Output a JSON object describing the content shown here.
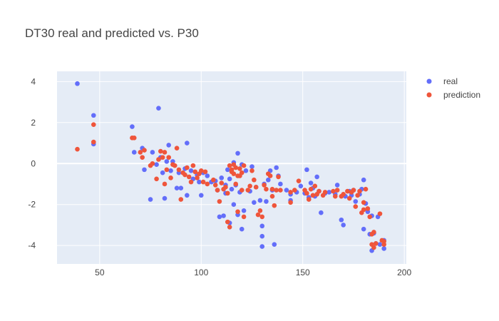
{
  "chart_data": {
    "type": "scatter",
    "title": "DT30 real and predicted vs. P30",
    "xlabel": "",
    "ylabel": "",
    "xlim": [
      29,
      201
    ],
    "ylim": [
      -4.9,
      4.5
    ],
    "xticks": [
      50,
      100,
      150,
      200
    ],
    "yticks": [
      4,
      2,
      0,
      -2,
      -4
    ],
    "grid": true,
    "legend_position": "top-right",
    "series": [
      {
        "name": "real",
        "color": "#636efa",
        "points": [
          [
            39,
            3.9
          ],
          [
            47,
            2.35
          ],
          [
            47,
            0.95
          ],
          [
            66,
            1.8
          ],
          [
            67,
            0.55
          ],
          [
            71,
            0.75
          ],
          [
            72,
            -0.3
          ],
          [
            75,
            -1.75
          ],
          [
            76,
            0.55
          ],
          [
            78,
            -0.05
          ],
          [
            79,
            2.7
          ],
          [
            80,
            0.3
          ],
          [
            81,
            -0.45
          ],
          [
            82,
            -1.7
          ],
          [
            83,
            0.1
          ],
          [
            84,
            0.9
          ],
          [
            85,
            -0.35
          ],
          [
            86,
            0.1
          ],
          [
            88,
            -1.2
          ],
          [
            89,
            -0.45
          ],
          [
            90,
            -1.2
          ],
          [
            92,
            -0.25
          ],
          [
            93,
            1.0
          ],
          [
            93,
            -1.55
          ],
          [
            95,
            -0.35
          ],
          [
            96,
            -0.75
          ],
          [
            98,
            -0.55
          ],
          [
            99,
            -0.9
          ],
          [
            100,
            -1.55
          ],
          [
            101,
            -0.45
          ],
          [
            103,
            -0.6
          ],
          [
            105,
            -0.9
          ],
          [
            107,
            -0.85
          ],
          [
            108,
            -1.3
          ],
          [
            109,
            -2.6
          ],
          [
            110,
            -0.7
          ],
          [
            111,
            -2.55
          ],
          [
            112,
            -1.05
          ],
          [
            112,
            -1.45
          ],
          [
            113,
            -0.3
          ],
          [
            114,
            -2.9
          ],
          [
            114,
            -0.75
          ],
          [
            115,
            -1.25
          ],
          [
            116,
            -2.0
          ],
          [
            116,
            0.05
          ],
          [
            117,
            -1.05
          ],
          [
            118,
            -2.5
          ],
          [
            118,
            0.5
          ],
          [
            119,
            -1.4
          ],
          [
            120,
            -3.2
          ],
          [
            120,
            -0.05
          ],
          [
            121,
            -2.3
          ],
          [
            122,
            -0.35
          ],
          [
            124,
            -1.35
          ],
          [
            125,
            -0.15
          ],
          [
            126,
            -1.9
          ],
          [
            127,
            -1.15
          ],
          [
            129,
            -1.8
          ],
          [
            130,
            -3.05
          ],
          [
            130,
            -3.55
          ],
          [
            130,
            -4.05
          ],
          [
            131,
            -1.0
          ],
          [
            132,
            -1.85
          ],
          [
            133,
            -0.8
          ],
          [
            134,
            -0.35
          ],
          [
            135,
            -1.3
          ],
          [
            136,
            -3.95
          ],
          [
            137,
            -0.2
          ],
          [
            138,
            -0.6
          ],
          [
            139,
            -1.0
          ],
          [
            142,
            -1.3
          ],
          [
            144,
            -1.5
          ],
          [
            144,
            -1.8
          ],
          [
            147,
            -1.4
          ],
          [
            149,
            -1.1
          ],
          [
            151,
            -1.45
          ],
          [
            152,
            -0.3
          ],
          [
            153,
            -1.65
          ],
          [
            154,
            -0.95
          ],
          [
            155,
            -1.2
          ],
          [
            156,
            -1.6
          ],
          [
            157,
            -0.65
          ],
          [
            158,
            -1.35
          ],
          [
            159,
            -2.4
          ],
          [
            161,
            -1.45
          ],
          [
            163,
            -1.4
          ],
          [
            166,
            -1.5
          ],
          [
            167,
            -1.05
          ],
          [
            169,
            -2.75
          ],
          [
            170,
            -3.0
          ],
          [
            171,
            -1.6
          ],
          [
            173,
            -1.35
          ],
          [
            174,
            -1.55
          ],
          [
            175,
            -1.3
          ],
          [
            176,
            -1.85
          ],
          [
            178,
            -1.5
          ],
          [
            179,
            -1.25
          ],
          [
            180,
            -3.2
          ],
          [
            180,
            -0.8
          ],
          [
            181,
            -1.95
          ],
          [
            182,
            -2.35
          ],
          [
            183,
            -3.45
          ],
          [
            184,
            -2.55
          ],
          [
            184,
            -4.25
          ],
          [
            185,
            -3.4
          ],
          [
            186,
            -3.9
          ],
          [
            187,
            -2.6
          ],
          [
            188,
            -3.95
          ],
          [
            190,
            -4.15
          ],
          [
            190,
            -3.75
          ]
        ]
      },
      {
        "name": "prediction",
        "color": "#ef553b",
        "points": [
          [
            39,
            0.7
          ],
          [
            47,
            1.9
          ],
          [
            47,
            1.05
          ],
          [
            66,
            1.25
          ],
          [
            67,
            1.25
          ],
          [
            70,
            0.55
          ],
          [
            71,
            0.3
          ],
          [
            72,
            0.65
          ],
          [
            75,
            -0.1
          ],
          [
            76,
            0.0
          ],
          [
            78,
            -0.75
          ],
          [
            79,
            0.2
          ],
          [
            80,
            0.6
          ],
          [
            81,
            0.3
          ],
          [
            82,
            -1.0
          ],
          [
            82,
            0.55
          ],
          [
            83,
            -0.3
          ],
          [
            84,
            0.3
          ],
          [
            85,
            -0.7
          ],
          [
            86,
            -0.05
          ],
          [
            87,
            -0.1
          ],
          [
            88,
            0.75
          ],
          [
            89,
            -0.3
          ],
          [
            90,
            -1.75
          ],
          [
            91,
            -0.45
          ],
          [
            92,
            -0.55
          ],
          [
            93,
            -0.2
          ],
          [
            94,
            -0.65
          ],
          [
            95,
            -0.9
          ],
          [
            96,
            -0.1
          ],
          [
            97,
            -0.4
          ],
          [
            98,
            -0.7
          ],
          [
            99,
            -0.5
          ],
          [
            100,
            -0.35
          ],
          [
            101,
            -0.9
          ],
          [
            102,
            -0.4
          ],
          [
            103,
            -1.0
          ],
          [
            106,
            -0.8
          ],
          [
            107,
            -1.05
          ],
          [
            108,
            -1.3
          ],
          [
            109,
            -1.85
          ],
          [
            110,
            -0.95
          ],
          [
            111,
            -1.25
          ],
          [
            112,
            -1.15
          ],
          [
            113,
            -2.85
          ],
          [
            113,
            -1.45
          ],
          [
            114,
            -3.1
          ],
          [
            114,
            -0.1
          ],
          [
            115,
            -0.3
          ],
          [
            115,
            -0.4
          ],
          [
            116,
            -0.05
          ],
          [
            116,
            -0.5
          ],
          [
            117,
            -0.2
          ],
          [
            117,
            -1.0
          ],
          [
            118,
            -0.6
          ],
          [
            118,
            -2.35
          ],
          [
            119,
            -0.25
          ],
          [
            119,
            -0.6
          ],
          [
            120,
            -0.45
          ],
          [
            120,
            -1.3
          ],
          [
            121,
            -0.1
          ],
          [
            121,
            -2.6
          ],
          [
            123,
            -1.3
          ],
          [
            124,
            -1.1
          ],
          [
            125,
            -0.35
          ],
          [
            126,
            -0.8
          ],
          [
            127,
            -1.15
          ],
          [
            128,
            -2.5
          ],
          [
            129,
            -2.3
          ],
          [
            130,
            -2.6
          ],
          [
            131,
            -1.05
          ],
          [
            132,
            -1.25
          ],
          [
            133,
            -0.5
          ],
          [
            134,
            -0.6
          ],
          [
            135,
            -1.6
          ],
          [
            135,
            -1.25
          ],
          [
            136,
            -2.05
          ],
          [
            137,
            -1.3
          ],
          [
            138,
            -0.65
          ],
          [
            139,
            -1.3
          ],
          [
            144,
            -1.4
          ],
          [
            144,
            -1.9
          ],
          [
            146,
            -1.3
          ],
          [
            148,
            -0.85
          ],
          [
            151,
            -1.3
          ],
          [
            152,
            -1.45
          ],
          [
            153,
            -1.75
          ],
          [
            154,
            -1.25
          ],
          [
            155,
            -1.55
          ],
          [
            156,
            -1.1
          ],
          [
            157,
            -1.5
          ],
          [
            158,
            -1.35
          ],
          [
            160,
            -1.55
          ],
          [
            161,
            -1.4
          ],
          [
            165,
            -1.35
          ],
          [
            166,
            -1.6
          ],
          [
            167,
            -1.3
          ],
          [
            169,
            -1.6
          ],
          [
            170,
            -1.5
          ],
          [
            172,
            -1.35
          ],
          [
            173,
            -1.7
          ],
          [
            174,
            -1.4
          ],
          [
            175,
            -1.3
          ],
          [
            176,
            -2.1
          ],
          [
            177,
            -1.55
          ],
          [
            178,
            -1.35
          ],
          [
            179,
            -2.4
          ],
          [
            180,
            -2.25
          ],
          [
            180,
            -1.9
          ],
          [
            181,
            -1.25
          ],
          [
            182,
            -2.2
          ],
          [
            183,
            -2.6
          ],
          [
            184,
            -3.45
          ],
          [
            184,
            -3.95
          ],
          [
            185,
            -4.1
          ],
          [
            185,
            -3.35
          ],
          [
            186,
            -3.9
          ],
          [
            188,
            -2.45
          ],
          [
            189,
            -3.75
          ],
          [
            190,
            -3.95
          ],
          [
            190,
            -3.8
          ]
        ]
      }
    ]
  }
}
